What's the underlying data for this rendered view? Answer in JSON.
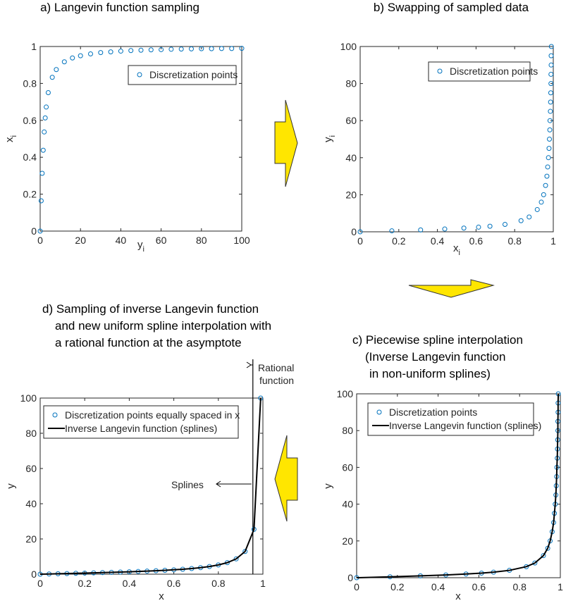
{
  "chart_data": [
    {
      "type": "scatter",
      "title": [
        "a) Langevin function sampling"
      ],
      "xlabel": "y",
      "xlabel_sub": "i",
      "ylabel": "x",
      "ylabel_sub": "i",
      "xlim": [
        0,
        100
      ],
      "xticks": [
        0,
        20,
        40,
        60,
        80,
        100
      ],
      "ylim": [
        0,
        1
      ],
      "yticks": [
        0,
        0.2,
        0.4,
        0.6,
        0.8,
        1
      ],
      "series": [
        {
          "name": "Discretization points",
          "type": "scatter",
          "color": "#0072bd",
          "x": [
            0,
            0.5,
            1,
            1.5,
            2,
            2.5,
            3,
            4,
            6,
            8,
            12,
            16,
            20,
            25,
            30,
            35,
            40,
            45,
            50,
            55,
            60,
            65,
            70,
            75,
            80,
            85,
            90,
            95,
            100
          ],
          "values": [
            0,
            0.164,
            0.313,
            0.438,
            0.537,
            0.613,
            0.672,
            0.75,
            0.833,
            0.875,
            0.917,
            0.938,
            0.95,
            0.96,
            0.967,
            0.971,
            0.975,
            0.978,
            0.98,
            0.982,
            0.983,
            0.985,
            0.986,
            0.987,
            0.988,
            0.988,
            0.989,
            0.989,
            0.99
          ]
        }
      ]
    },
    {
      "type": "scatter",
      "title": [
        "b) Swapping of sampled data"
      ],
      "xlabel": "x",
      "xlabel_sub": "i",
      "ylabel": "y",
      "ylabel_sub": "i",
      "xlim": [
        0,
        1
      ],
      "xticks": [
        0,
        0.2,
        0.4,
        0.6,
        0.8,
        1
      ],
      "ylim": [
        0,
        100
      ],
      "yticks": [
        0,
        20,
        40,
        60,
        80,
        100
      ],
      "series": [
        {
          "name": "Discretization points",
          "type": "scatter",
          "color": "#0072bd",
          "x": [
            0,
            0.164,
            0.313,
            0.438,
            0.537,
            0.613,
            0.672,
            0.75,
            0.833,
            0.875,
            0.917,
            0.938,
            0.95,
            0.96,
            0.967,
            0.971,
            0.975,
            0.978,
            0.98,
            0.982,
            0.983,
            0.985,
            0.986,
            0.987,
            0.988,
            0.988,
            0.989,
            0.989,
            0.99
          ],
          "values": [
            0,
            0.5,
            1,
            1.5,
            2,
            2.5,
            3,
            4,
            6,
            8,
            12,
            16,
            20,
            25,
            30,
            35,
            40,
            45,
            50,
            55,
            60,
            65,
            70,
            75,
            80,
            85,
            90,
            95,
            100
          ]
        }
      ]
    },
    {
      "type": "scatter",
      "title": [
        "c) Piecewise spline interpolation",
        "(Inverse Langevin function",
        "in non-uniform splines)"
      ],
      "xlabel": "x",
      "ylabel": "y",
      "xlim": [
        0,
        1
      ],
      "xticks": [
        0,
        0.2,
        0.4,
        0.6,
        0.8,
        1
      ],
      "ylim": [
        0,
        100
      ],
      "yticks": [
        0,
        20,
        40,
        60,
        80,
        100
      ],
      "series": [
        {
          "name": "Discretization points",
          "type": "scatter",
          "color": "#0072bd",
          "x": [
            0,
            0.164,
            0.313,
            0.438,
            0.537,
            0.613,
            0.672,
            0.75,
            0.833,
            0.875,
            0.917,
            0.938,
            0.95,
            0.96,
            0.967,
            0.971,
            0.975,
            0.978,
            0.98,
            0.982,
            0.983,
            0.985,
            0.986,
            0.987,
            0.988,
            0.988,
            0.989,
            0.989,
            0.99
          ],
          "values": [
            0,
            0.5,
            1,
            1.5,
            2,
            2.5,
            3,
            4,
            6,
            8,
            12,
            16,
            20,
            25,
            30,
            35,
            40,
            45,
            50,
            55,
            60,
            65,
            70,
            75,
            80,
            85,
            90,
            95,
            100
          ]
        },
        {
          "name": "Inverse Langevin function (splines)",
          "type": "line",
          "color": "#000000",
          "x": [
            0,
            0.164,
            0.313,
            0.438,
            0.537,
            0.613,
            0.672,
            0.75,
            0.833,
            0.875,
            0.917,
            0.938,
            0.95,
            0.96,
            0.967,
            0.971,
            0.975,
            0.978,
            0.98,
            0.982,
            0.983,
            0.985,
            0.986,
            0.987,
            0.988,
            0.988,
            0.989,
            0.989,
            0.99
          ],
          "values": [
            0,
            0.5,
            1,
            1.5,
            2,
            2.5,
            3,
            4,
            6,
            8,
            12,
            16,
            20,
            25,
            30,
            35,
            40,
            45,
            50,
            55,
            60,
            65,
            70,
            75,
            80,
            85,
            90,
            95,
            100
          ]
        }
      ]
    },
    {
      "type": "scatter",
      "title": [
        "d) Sampling of inverse Langevin function",
        "and new uniform spline interpolation with",
        "a rational function at the asymptote"
      ],
      "xlabel": "x",
      "ylabel": "y",
      "xlim": [
        0,
        1
      ],
      "xticks": [
        0,
        0.2,
        0.4,
        0.6,
        0.8,
        1
      ],
      "ylim": [
        0,
        100
      ],
      "yticks": [
        0,
        20,
        40,
        60,
        80,
        100
      ],
      "vline": 0.955,
      "annotations": [
        [
          "Rational",
          "function"
        ],
        [
          "Splines"
        ]
      ],
      "series": [
        {
          "name": "Discretization points equally spaced in x",
          "type": "scatter",
          "color": "#0072bd",
          "x": [
            0,
            0.04,
            0.08,
            0.12,
            0.16,
            0.2,
            0.24,
            0.28,
            0.32,
            0.36,
            0.4,
            0.44,
            0.48,
            0.52,
            0.56,
            0.6,
            0.64,
            0.68,
            0.72,
            0.76,
            0.8,
            0.84,
            0.88,
            0.92,
            0.96,
            0.99
          ],
          "values": [
            0,
            0.12,
            0.241,
            0.364,
            0.488,
            0.617,
            0.749,
            0.888,
            1.033,
            1.187,
            1.352,
            1.531,
            1.727,
            1.945,
            2.192,
            2.475,
            2.808,
            3.21,
            3.71,
            4.358,
            5.244,
            6.547,
            8.681,
            12.9,
            25.45,
            100
          ]
        },
        {
          "name": "Inverse Langevin function (splines)",
          "type": "line",
          "color": "#000000",
          "x": [
            0,
            0.04,
            0.08,
            0.12,
            0.16,
            0.2,
            0.24,
            0.28,
            0.32,
            0.36,
            0.4,
            0.44,
            0.48,
            0.52,
            0.56,
            0.6,
            0.64,
            0.68,
            0.72,
            0.76,
            0.8,
            0.84,
            0.88,
            0.92,
            0.96,
            0.99
          ],
          "values": [
            0,
            0.12,
            0.241,
            0.364,
            0.488,
            0.617,
            0.749,
            0.888,
            1.033,
            1.187,
            1.352,
            1.531,
            1.727,
            1.945,
            2.192,
            2.475,
            2.808,
            3.21,
            3.71,
            4.358,
            5.244,
            6.547,
            8.681,
            12.9,
            25.45,
            100
          ]
        }
      ]
    }
  ]
}
